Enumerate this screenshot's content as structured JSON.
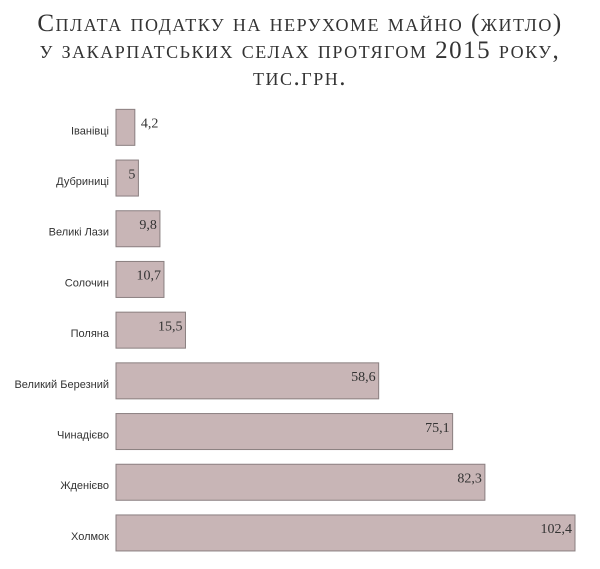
{
  "chart_data": {
    "type": "bar",
    "orientation": "horizontal",
    "title": "Сплата податку на нерухоме майно (житло)\nу закарпатських селах протягом 2015 року,\nтис.грн.",
    "categories": [
      "Іванівці",
      "Дубриниці",
      "Великі Лази",
      "Солочин",
      "Поляна",
      "Великий Березний",
      "Чинадієво",
      "Жденієво",
      "Холмок"
    ],
    "values": [
      4.2,
      5,
      9.8,
      10.7,
      15.5,
      58.6,
      75.1,
      82.3,
      102.4
    ],
    "value_labels": [
      "4,2",
      "5",
      "9,8",
      "10,7",
      "15,5",
      "58,6",
      "75,1",
      "82,3",
      "102,4"
    ],
    "color": "#c8b5b6"
  }
}
